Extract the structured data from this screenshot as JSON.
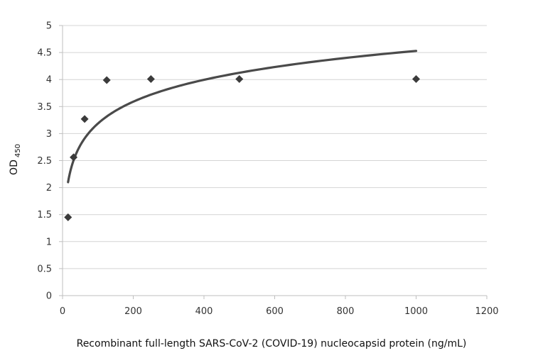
{
  "chart_data": {
    "type": "scatter",
    "title": "",
    "xlabel": "Recombinant  full-length SARS-CoV-2 (COVID-19) nucleocapsid protein  (ng/mL)",
    "ylabel": {
      "main": "OD",
      "subscript": "450"
    },
    "xlim": [
      0,
      1200
    ],
    "ylim": [
      0,
      5
    ],
    "x_ticks": [
      "0",
      "200",
      "400",
      "600",
      "800",
      "1000",
      "1200"
    ],
    "y_ticks": [
      "0",
      "0.5",
      "1",
      "1.5",
      "2",
      "2.5",
      "3",
      "3.5",
      "4",
      "4.5",
      "5"
    ],
    "grid": "horizontal",
    "legend": "none",
    "marker": "diamond",
    "series": [
      {
        "points": [
          {
            "x": 15.6,
            "y": 1.45
          },
          {
            "x": 31.25,
            "y": 2.56
          },
          {
            "x": 62.5,
            "y": 3.27
          },
          {
            "x": 125,
            "y": 3.99
          },
          {
            "x": 250,
            "y": 4.01
          },
          {
            "x": 500,
            "y": 4.01
          },
          {
            "x": 1000,
            "y": 4.01
          }
        ]
      }
    ],
    "trendline": {
      "type": "logarithmic",
      "x_start": 15.6,
      "x_end": 1000,
      "points": [
        {
          "x": 15.6,
          "y": 2.1
        },
        {
          "x": 31.25,
          "y": 2.62
        },
        {
          "x": 62.5,
          "y": 3.13
        },
        {
          "x": 125,
          "y": 3.45
        },
        {
          "x": 250,
          "y": 3.76
        },
        {
          "x": 500,
          "y": 4.13
        },
        {
          "x": 1000,
          "y": 4.53
        }
      ]
    },
    "colors": {
      "marker": "#3b3b3b",
      "trendline": "#4a4a4a",
      "grid": "#d4d4d4",
      "axis": "#bfbfbf",
      "text": "#333333"
    }
  }
}
